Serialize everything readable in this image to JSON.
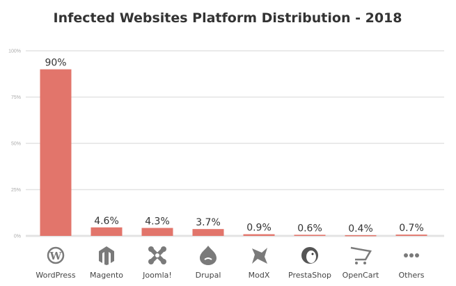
{
  "chart_data": {
    "type": "bar",
    "title": "Infected Websites Platform Distribution - 2018",
    "xlabel": "",
    "ylabel": "",
    "ylim": [
      0,
      100
    ],
    "yticks": [
      "0%",
      "25%",
      "50%",
      "75%",
      "100%"
    ],
    "grid": true,
    "categories": [
      "WordPress",
      "Magento",
      "Joomla!",
      "Drupal",
      "ModX",
      "PrestaShop",
      "OpenCart",
      "Others"
    ],
    "icons": [
      "wordpress-icon",
      "magento-icon",
      "joomla-icon",
      "drupal-icon",
      "modx-icon",
      "prestashop-icon",
      "opencart-icon",
      "ellipsis-icon"
    ],
    "values": [
      90,
      4.6,
      4.3,
      3.7,
      0.9,
      0.6,
      0.4,
      0.7
    ],
    "data_labels": [
      "90%",
      "4.6%",
      "4.3%",
      "3.7%",
      "0.9%",
      "0.6%",
      "0.4%",
      "0.7%"
    ],
    "bar_color": "#e2756b",
    "grid_color": "#e3e3e3",
    "icon_color": "#7a7a7a"
  }
}
